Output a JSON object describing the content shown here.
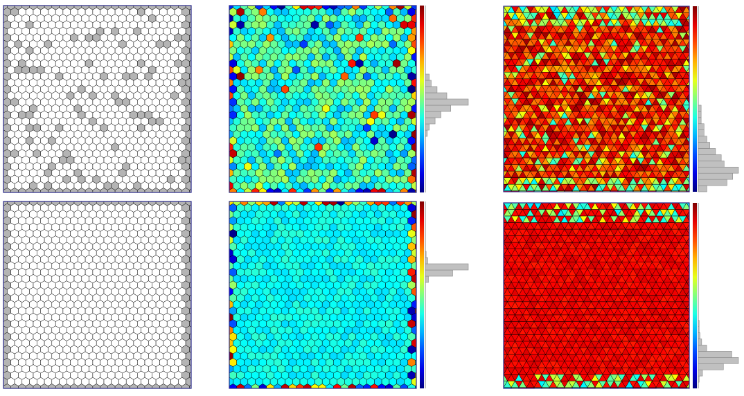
{
  "figure": {
    "panels": [
      {
        "id": "top-left",
        "kind": "defect-map",
        "gray_fraction": 0.12
      },
      {
        "id": "top-middle",
        "kind": "voronoi-colormap",
        "mean": 0.42,
        "spread": 0.12
      },
      {
        "id": "top-right",
        "kind": "triangle-colormap",
        "mean": 0.85,
        "spread": 0.12
      },
      {
        "id": "bottom-left",
        "kind": "defect-map",
        "gray_fraction": 0.0
      },
      {
        "id": "bottom-middle",
        "kind": "voronoi-colormap",
        "mean": 0.38,
        "spread": 0.04
      },
      {
        "id": "bottom-right",
        "kind": "triangle-colormap",
        "mean": 0.88,
        "spread": 0.03
      }
    ],
    "histograms": {
      "top-middle": [
        0,
        0,
        0,
        0,
        0,
        0,
        0,
        0,
        0,
        1,
        2,
        5,
        8,
        13,
        22,
        11,
        6,
        3,
        2,
        0,
        0,
        0,
        0,
        0,
        0,
        0,
        0,
        0,
        0,
        0
      ],
      "bottom-middle": [
        0,
        0,
        0,
        0,
        0,
        0,
        0,
        0,
        0,
        0,
        0,
        0,
        0,
        0,
        0,
        0,
        0,
        4,
        35,
        55,
        3,
        1,
        0,
        0,
        0,
        0,
        0,
        0,
        0,
        0
      ],
      "top-right": [
        3,
        10,
        12,
        14,
        9,
        8,
        6,
        4,
        3,
        2,
        2,
        1,
        1,
        1,
        0,
        0,
        0,
        0,
        0,
        0,
        0,
        0,
        0,
        0,
        0,
        0,
        0,
        0,
        0,
        0
      ],
      "bottom-right": [
        0,
        1,
        5,
        30,
        48,
        40,
        10,
        4,
        2,
        1,
        1,
        0,
        0,
        0,
        0,
        0,
        0,
        0,
        0,
        0,
        0,
        0,
        0,
        0,
        0,
        0,
        0,
        0,
        0,
        0
      ]
    },
    "colors": {
      "frame": "#2a2a8a",
      "gray_cell": "#b4b4b4",
      "hist_bar": "#c0c0c0"
    }
  }
}
